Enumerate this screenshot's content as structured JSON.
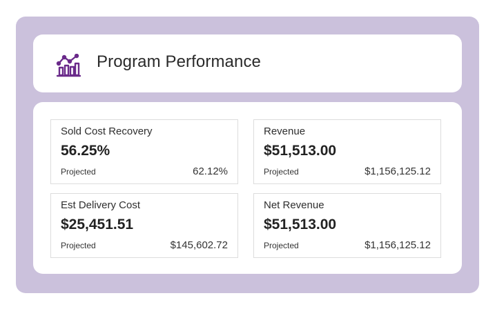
{
  "header": {
    "title": "Program Performance",
    "icon": "chart-performance-icon",
    "icon_color": "#6a2a8a"
  },
  "colors": {
    "frame_background": "#cbc1dc",
    "card_background": "#ffffff"
  },
  "metrics": [
    {
      "label": "Sold Cost Recovery",
      "value": "56.25%",
      "sub_label": "Projected",
      "sub_value": "62.12%"
    },
    {
      "label": "Revenue",
      "value": "$51,513.00",
      "sub_label": "Projected",
      "sub_value": "$1,156,125.12"
    },
    {
      "label": "Est Delivery Cost",
      "value": "$25,451.51",
      "sub_label": "Projected",
      "sub_value": "$145,602.72"
    },
    {
      "label": "Net Revenue",
      "value": "$51,513.00",
      "sub_label": "Projected",
      "sub_value": "$1,156,125.12"
    }
  ]
}
